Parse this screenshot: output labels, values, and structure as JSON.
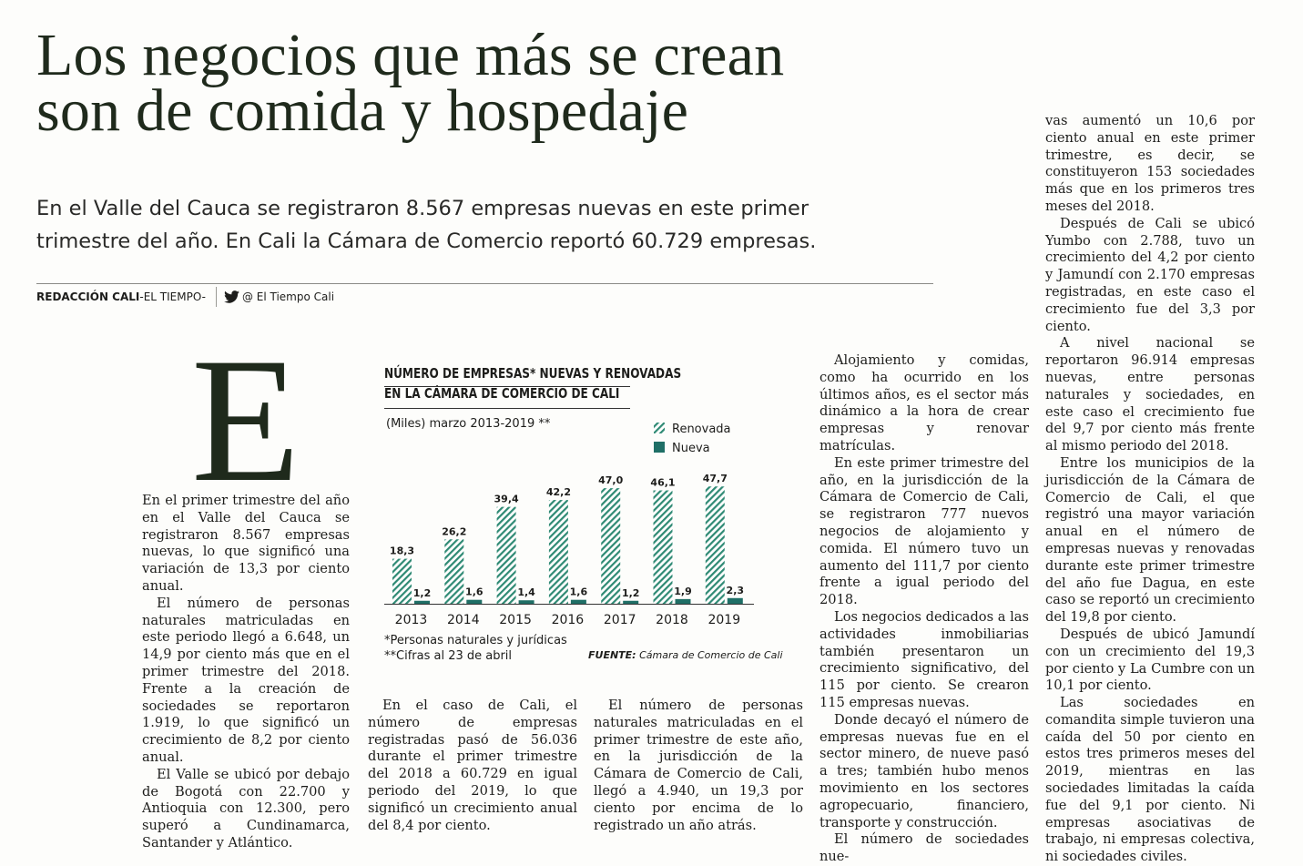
{
  "headline": [
    "Los negocios que más se crean",
    "son de comida y hospedaje"
  ],
  "subhead": [
    "En el Valle del Cauca se registraron 8.567 empresas nuevas en este primer",
    "trimestre del año. En Cali la Cámara de Comercio reportó 60.729 empresas."
  ],
  "byline": {
    "staff": "REDACCIÓN CALI",
    "outlet": " -EL TIEMPO-",
    "handle": "@ El Tiempo Cali"
  },
  "article": {
    "dropcap": "E",
    "col1": [
      "En el primer trimestre del año en el Valle del Cauca se registraron 8.567 empresas nuevas, lo que significó una variación de 13,3 por ciento anual.",
      "El número de personas naturales matriculadas en este periodo llegó a 6.648, un 14,9 por ciento más que en el primer trimestre del 2018. Frente a la creación de sociedades se reportaron 1.919, lo que significó un crecimiento de 8,2 por ciento anual.",
      "El Valle se ubicó por debajo de Bogotá con 22.700 y Antioquia con 12.300, pero superó a Cundinamarca, Santander y Atlántico."
    ],
    "col2": [
      "En el caso de Cali, el número de empresas registradas pasó de 56.036 durante el primer trimestre del 2018 a 60.729 en igual periodo del 2019, lo que significó un crecimiento anual del 8,4 por ciento."
    ],
    "col3": [
      "El número de personas naturales matriculadas en el primer trimestre de este año, en la jurisdicción de la Cámara de Comercio de Cali, llegó a 4.940, un 19,3 por ciento por encima de lo registrado un año atrás."
    ],
    "col4": [
      "Alojamiento y comidas, como ha ocurrido en los últimos años, es el sector más dinámico a la hora de crear empresas y renovar matrículas.",
      "En este primer trimestre del año, en la jurisdicción de la Cámara de Comercio de Cali, se registraron 777 nuevos negocios de alojamiento y comida. El número tuvo un aumento del 111,7 por ciento frente a igual periodo del 2018.",
      "Los negocios dedicados a las actividades inmobiliarias también presentaron un crecimiento significativo, del 115 por ciento. Se crearon 115 empresas nuevas.",
      "Donde decayó el número de empresas nuevas fue en el sector minero, de nueve pasó a tres; también hubo menos movimiento en los sectores agropecuario, financiero, transporte y construcción.",
      "El número de sociedades nue-"
    ],
    "col5": [
      "vas aumentó un 10,6 por ciento anual en este primer trimestre, es decir, se constituyeron 153 sociedades más que en los primeros tres meses del 2018.",
      "Después de Cali se ubicó Yumbo con 2.788, tuvo un crecimiento del 4,2 por ciento y Jamundí con 2.170 empresas registradas, en este caso el crecimiento fue del 3,3 por ciento.",
      "A nivel nacional se reportaron 96.914 empresas nuevas, entre personas naturales y sociedades, en este caso el crecimiento fue del 9,7 por ciento más frente al mismo periodo del 2018.",
      "Entre los municipios de la jurisdicción de la Cámara de Comercio de Cali, el que registró una mayor variación anual en el número de empresas nuevas y renovadas durante este primer trimestre del año fue Dagua, en este caso se reportó un crecimiento del 19,8 por ciento.",
      "Después de ubicó Jamundí con un crecimiento del 19,3 por ciento y La Cumbre con un 10,1 por ciento.",
      "Las sociedades en comandita simple tuvieron una caída del 50 por ciento en estos tres primeros meses del 2019, mientras en las sociedades limitadas la caída fue del 9,1 por ciento. Ni empresas asociativas de trabajo, ni empresas colectiva, ni sociedades civiles."
    ]
  },
  "chart_data": {
    "type": "bar",
    "title": "NÚMERO DE EMPRESAS* NUEVAS Y RENOVADAS EN LA CÁMARA DE COMERCIO DE CALI",
    "title_lines": [
      "NÚMERO DE EMPRESAS* NUEVAS Y RENOVADAS",
      "EN LA CÁMARA DE COMERCIO DE CALI"
    ],
    "subtitle": "(Miles) marzo 2013-2019 **",
    "categories": [
      "2013",
      "2014",
      "2015",
      "2016",
      "2017",
      "2018",
      "2019"
    ],
    "series": [
      {
        "name": "Renovada",
        "color": "#2f8a74",
        "pattern": "diagonal-hatch",
        "values": [
          18.3,
          26.2,
          39.4,
          42.2,
          47.0,
          46.1,
          47.7
        ],
        "labels": [
          "18,3",
          "26,2",
          "39,4",
          "42,2",
          "47,0",
          "46,1",
          "47,7"
        ]
      },
      {
        "name": "Nueva",
        "color": "#1f6f66",
        "pattern": "solid",
        "values": [
          1.2,
          1.6,
          1.4,
          1.6,
          1.2,
          1.9,
          2.3
        ],
        "labels": [
          "1,2",
          "1,6",
          "1,4",
          "1,6",
          "1,2",
          "1,9",
          "2,3"
        ]
      }
    ],
    "ylim": [
      0,
      50
    ],
    "legend_position": "top-right",
    "footnotes": [
      "*Personas naturales y jurídicas",
      "**Cifras al 23 de abril"
    ],
    "source_label": "FUENTE:",
    "source_text": " Cámara de Comercio de Cali"
  }
}
